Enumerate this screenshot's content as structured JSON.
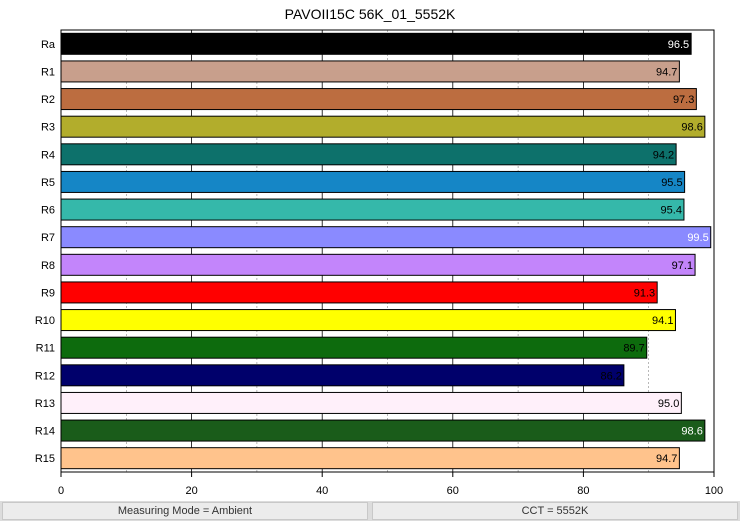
{
  "chart_data": {
    "type": "bar",
    "orientation": "horizontal",
    "title": "PAVOII15C 56K_01_5552K",
    "categories": [
      "Ra",
      "R1",
      "R2",
      "R3",
      "R4",
      "R5",
      "R6",
      "R7",
      "R8",
      "R9",
      "R10",
      "R11",
      "R12",
      "R13",
      "R14",
      "R15"
    ],
    "values": [
      96.5,
      94.7,
      97.3,
      98.6,
      94.2,
      95.5,
      95.4,
      99.5,
      97.1,
      91.3,
      94.1,
      89.7,
      86.2,
      95.0,
      98.6,
      94.7
    ],
    "value_labels": [
      "96.5",
      "94.7",
      "97.3",
      "98.6",
      "94.2",
      "95.5",
      "95.4",
      "99.5",
      "97.1",
      "91.3",
      "94.1",
      "89.7",
      "86.2",
      "95.0",
      "98.6",
      "94.7"
    ],
    "colors": [
      "#000000",
      "#c89f8c",
      "#bc6d40",
      "#b2ad2c",
      "#0d716b",
      "#1586c6",
      "#35b8aa",
      "#8a8aff",
      "#c385fb",
      "#ff0000",
      "#ffff00",
      "#0d6b0d",
      "#00006b",
      "#fff0fa",
      "#1a5c1a",
      "#ffc38c"
    ],
    "label_colors": [
      "#ffffff",
      "#000000",
      "#000000",
      "#000000",
      "#000000",
      "#000000",
      "#000000",
      "#ffffff",
      "#000000",
      "#000000",
      "#000000",
      "#000000",
      "#000000",
      "#000000",
      "#ffffff",
      "#000000"
    ],
    "xlim": [
      0,
      100
    ],
    "xticks": [
      0,
      20,
      40,
      60,
      80,
      100
    ],
    "xlabel": "",
    "ylabel": "",
    "grid": true,
    "legend": "none"
  },
  "status": {
    "measuring_mode": "Measuring Mode = Ambient",
    "cct": "CCT = 5552K"
  }
}
